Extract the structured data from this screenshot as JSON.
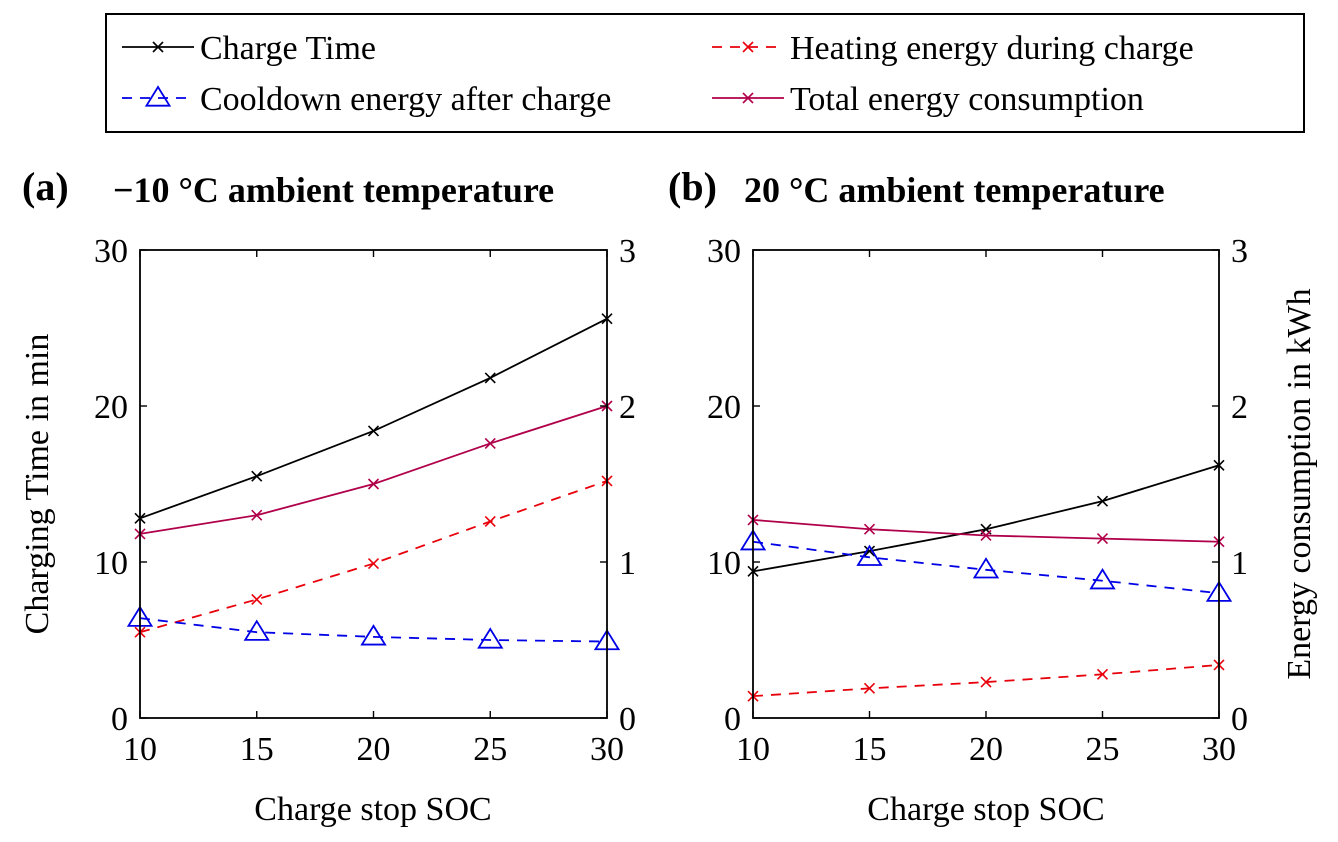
{
  "legend": [
    {
      "label": "Charge Time",
      "series": "charge_time"
    },
    {
      "label": "Heating energy during charge",
      "series": "heating"
    },
    {
      "label": "Cooldown energy after charge",
      "series": "cooldown"
    },
    {
      "label": "Total energy consumption",
      "series": "total"
    }
  ],
  "styles": {
    "charge_time": {
      "color": "#000000",
      "dash": "",
      "marker": "x"
    },
    "heating": {
      "color": "#e8000b",
      "dash": "10,8",
      "marker": "x"
    },
    "cooldown": {
      "color": "#0000e6",
      "dash": "10,8",
      "marker": "triangle"
    },
    "total": {
      "color": "#b0004a",
      "dash": "",
      "marker": "x"
    }
  },
  "chart_data": [
    {
      "type": "line",
      "panel_label": "(a)",
      "title": "−10 °C ambient temperature",
      "xlabel": "Charge stop SOC",
      "ylabel_left": "Charging Time in min",
      "ylabel_right": "",
      "x": [
        10,
        15,
        20,
        25,
        30
      ],
      "xlim": [
        10,
        30
      ],
      "ylim_left": [
        0,
        30
      ],
      "ylim_right": [
        0,
        3
      ],
      "xticks": [
        "10",
        "15",
        "20",
        "25",
        "30"
      ],
      "yticks_left": [
        "0",
        "10",
        "20",
        "30"
      ],
      "yticks_right": [
        "0",
        "1",
        "2",
        "3"
      ],
      "series": [
        {
          "key": "charge_time",
          "name": "Charge Time",
          "axis": "left",
          "values": [
            12.8,
            15.5,
            18.4,
            21.8,
            25.6
          ]
        },
        {
          "key": "heating",
          "name": "Heating energy during charge",
          "axis": "right",
          "values": [
            0.55,
            0.76,
            0.99,
            1.26,
            1.52
          ]
        },
        {
          "key": "cooldown",
          "name": "Cooldown energy after charge",
          "axis": "right",
          "values": [
            0.64,
            0.55,
            0.52,
            0.5,
            0.49
          ]
        },
        {
          "key": "total",
          "name": "Total energy consumption",
          "axis": "right",
          "values": [
            1.18,
            1.3,
            1.5,
            1.76,
            2.0
          ]
        }
      ]
    },
    {
      "type": "line",
      "panel_label": "(b)",
      "title": "20 °C ambient temperature",
      "xlabel": "Charge stop SOC",
      "ylabel_left": "",
      "ylabel_right": "Energy consumption in kWh",
      "x": [
        10,
        15,
        20,
        25,
        30
      ],
      "xlim": [
        10,
        30
      ],
      "ylim_left": [
        0,
        30
      ],
      "ylim_right": [
        0,
        3
      ],
      "xticks": [
        "10",
        "15",
        "20",
        "25",
        "30"
      ],
      "yticks_left": [
        "0",
        "10",
        "20",
        "30"
      ],
      "yticks_right": [
        "0",
        "1",
        "2",
        "3"
      ],
      "series": [
        {
          "key": "charge_time",
          "name": "Charge Time",
          "axis": "left",
          "values": [
            9.4,
            10.7,
            12.1,
            13.9,
            16.2
          ]
        },
        {
          "key": "heating",
          "name": "Heating energy during charge",
          "axis": "right",
          "values": [
            0.14,
            0.19,
            0.23,
            0.28,
            0.34
          ]
        },
        {
          "key": "cooldown",
          "name": "Cooldown energy after charge",
          "axis": "right",
          "values": [
            1.13,
            1.03,
            0.95,
            0.88,
            0.8
          ]
        },
        {
          "key": "total",
          "name": "Total energy consumption",
          "axis": "right",
          "values": [
            1.27,
            1.21,
            1.17,
            1.15,
            1.13
          ]
        }
      ]
    }
  ]
}
